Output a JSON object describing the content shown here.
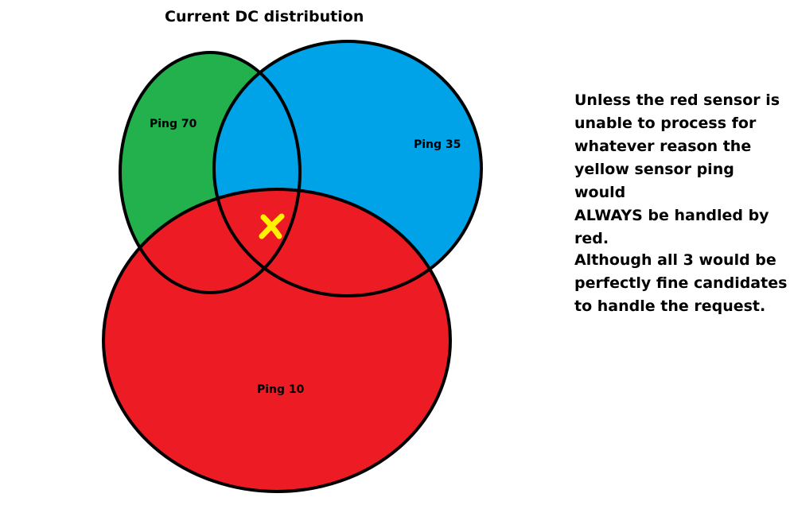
{
  "title": "Current DC distribution",
  "circles": {
    "green": {
      "label": "Ping 70",
      "color": "#22b14c"
    },
    "blue": {
      "label": "Ping 35",
      "color": "#00a2e8"
    },
    "red": {
      "label": "Ping 10",
      "color": "#ed1c24"
    }
  },
  "marker": {
    "color": "#fff200",
    "icon": "x-mark-icon"
  },
  "notes": {
    "paragraph_1_lines": [
      "Unless the red sensor is",
      "unable to process for",
      "whatever reason the",
      "yellow sensor ping would",
      "ALWAYS be handled by",
      "red."
    ],
    "paragraph_2_lines": [
      "Although all 3 would be",
      "perfectly fine candidates",
      "to handle the request."
    ]
  }
}
